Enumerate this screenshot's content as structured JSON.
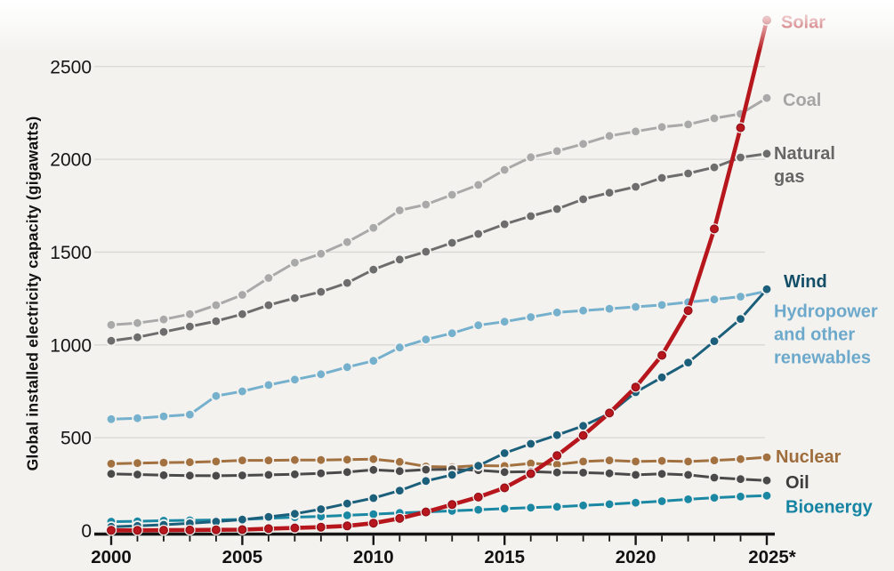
{
  "chart_data": {
    "type": "line",
    "title": "",
    "ylabel": "Global installed electricity capacity (gigawatts)",
    "x": [
      2000,
      2001,
      2002,
      2003,
      2004,
      2005,
      2006,
      2007,
      2008,
      2009,
      2010,
      2011,
      2012,
      2013,
      2014,
      2015,
      2016,
      2017,
      2018,
      2019,
      2020,
      2021,
      2022,
      2023,
      2024,
      2025
    ],
    "x_axis": {
      "tick_years": [
        2000,
        2005,
        2010,
        2015,
        2020,
        2025
      ],
      "tick_labels": [
        "2000",
        "2005",
        "2010",
        "2015",
        "2020",
        "2025*"
      ],
      "minor_ticks_every_year": true
    },
    "y_axis": {
      "ticks": [
        0,
        500,
        1000,
        1500,
        2000,
        2500
      ],
      "ylim": [
        0,
        2800
      ],
      "unit": "gigawatts"
    },
    "grid": "horizontal",
    "legend_position": "right-end-labels",
    "background_color": "#f3f2ef",
    "gridline_color": "#d8d7d3",
    "axis_color": "#161616",
    "series": [
      {
        "name": "Coal",
        "label_lines": [
          "Coal"
        ],
        "color": "#a9a9a9",
        "label_color": "#a5a5a5",
        "values": [
          1108,
          1118,
          1137,
          1166,
          1214,
          1270,
          1361,
          1443,
          1491,
          1554,
          1631,
          1725,
          1756,
          1809,
          1862,
          1943,
          2011,
          2044,
          2083,
          2126,
          2150,
          2174,
          2188,
          2221,
          2245,
          2330
        ]
      },
      {
        "name": "Natural gas",
        "label_lines": [
          "Natural",
          "gas"
        ],
        "color": "#6d6d6d",
        "label_color": "#666666",
        "values": [
          1022,
          1041,
          1070,
          1099,
          1128,
          1166,
          1214,
          1252,
          1286,
          1334,
          1406,
          1460,
          1502,
          1550,
          1598,
          1650,
          1694,
          1732,
          1785,
          1820,
          1852,
          1900,
          1924,
          1957,
          2010,
          2030
        ]
      },
      {
        "name": "Hydropower and other renewables",
        "label_lines": [
          "Hydropower",
          "and other",
          "renewables"
        ],
        "color": "#75b0cd",
        "label_color": "#6da9cb",
        "values": [
          600,
          605,
          615,
          625,
          725,
          750,
          784,
          813,
          842,
          880,
          914,
          986,
          1029,
          1063,
          1106,
          1125,
          1150,
          1175,
          1185,
          1195,
          1205,
          1215,
          1230,
          1245,
          1260,
          1290
        ]
      },
      {
        "name": "Nuclear",
        "label_lines": [
          "Nuclear"
        ],
        "color": "#a3713f",
        "label_color": "#9e6d3b",
        "values": [
          360,
          363,
          366,
          368,
          372,
          378,
          378,
          380,
          380,
          382,
          385,
          370,
          345,
          342,
          350,
          348,
          362,
          356,
          372,
          378,
          372,
          375,
          372,
          378,
          385,
          395
        ]
      },
      {
        "name": "Oil",
        "label_lines": [
          "Oil"
        ],
        "color": "#4a4a4a",
        "label_color": "#3d3d3d",
        "values": [
          305,
          302,
          298,
          296,
          295,
          297,
          300,
          303,
          308,
          315,
          327,
          320,
          328,
          330,
          325,
          315,
          317,
          313,
          312,
          308,
          300,
          305,
          300,
          285,
          277,
          270
        ]
      },
      {
        "name": "Bioenergy",
        "label_lines": [
          "Bioenergy"
        ],
        "color": "#1a87a3",
        "label_color": "#1583a2",
        "values": [
          48,
          50,
          53,
          55,
          57,
          60,
          66,
          72,
          76,
          82,
          88,
          95,
          100,
          106,
          112,
          118,
          123,
          128,
          135,
          142,
          150,
          158,
          168,
          177,
          183,
          188
        ]
      },
      {
        "name": "Wind",
        "label_lines": [
          "Wind"
        ],
        "color": "#1c5f7b",
        "label_color": "#154e67",
        "values": [
          20,
          25,
          31,
          39,
          48,
          59,
          74,
          90,
          115,
          145,
          175,
          215,
          267,
          300,
          349,
          417,
          467,
          514,
          564,
          630,
          745,
          825,
          905,
          1020,
          1140,
          1300
        ]
      },
      {
        "name": "Solar",
        "label_lines": [
          "Solar"
        ],
        "color": "#b6161c",
        "label_color": "#ad0c14",
        "marker_edge": "#93101a",
        "emphasis": true,
        "values": [
          1,
          1,
          2,
          3,
          4,
          5,
          10,
          14,
          18,
          25,
          40,
          65,
          100,
          140,
          180,
          230,
          306,
          404,
          512,
          633,
          773,
          944,
          1185,
          1625,
          2170,
          2750
        ]
      }
    ]
  }
}
